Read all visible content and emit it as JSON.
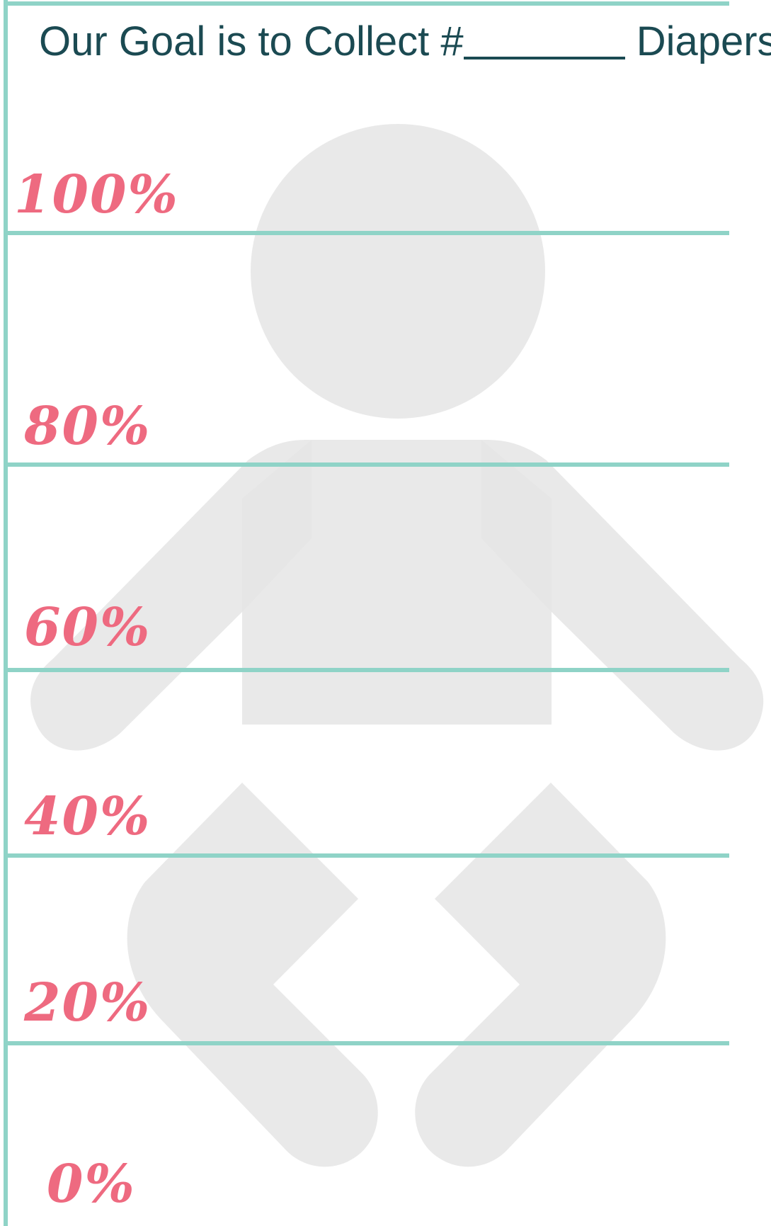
{
  "header": {
    "prefix": "Our Goal is to Collect #",
    "suffix": "Diapers"
  },
  "levels": [
    "100%",
    "80%",
    "60%",
    "40%",
    "20%",
    "0%"
  ],
  "colors": {
    "rule": "#8fd3c7",
    "title": "#1b4a52",
    "percent": "#ee6a80",
    "baby": "#e5e5e5"
  },
  "icons": {
    "background": "baby-icon"
  }
}
